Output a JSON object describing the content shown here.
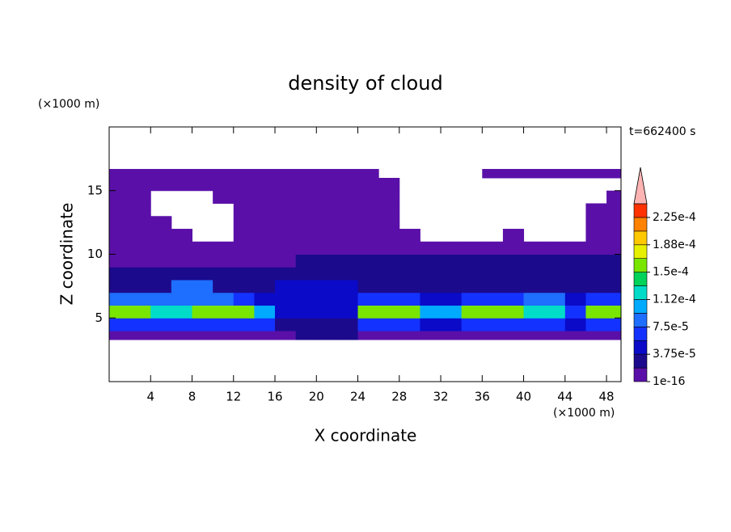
{
  "chart_data": {
    "type": "contour",
    "title": "density of cloud",
    "xlabel": "X coordinate",
    "ylabel": "Z coordinate",
    "xunit": "(×1000 m)",
    "yunit": "(×1000 m)",
    "annotation": "t=662400 s",
    "xlim": [
      0,
      49.4
    ],
    "ylim": [
      0,
      20
    ],
    "xticks": [
      4,
      8,
      12,
      16,
      20,
      24,
      28,
      32,
      36,
      40,
      44,
      48
    ],
    "yticks": [
      5,
      10,
      15
    ],
    "levels": [
      1e-16,
      1.875e-05,
      3.75e-05,
      5.625e-05,
      7.5e-05,
      9.375e-05,
      0.0001125,
      0.00013125,
      0.00015,
      0.00016875,
      0.0001875,
      0.00020625,
      0.000225,
      0.00024375
    ],
    "colors": [
      "#5a10a8",
      "#1c0a8c",
      "#0a0ac8",
      "#1432ff",
      "#1e6eff",
      "#00aaff",
      "#00dcc8",
      "#00d25a",
      "#78e600",
      "#e6f000",
      "#ffc800",
      "#ff8200",
      "#ff3200"
    ],
    "extend_color": "#ffb4b4",
    "cbar_ticks": [
      {
        "value": 1e-16,
        "label": "1e-16"
      },
      {
        "value": 3.75e-05,
        "label": "3.75e-5"
      },
      {
        "value": 7.5e-05,
        "label": "7.5e-5"
      },
      {
        "value": 0.0001125,
        "label": "1.12e-4"
      },
      {
        "value": 0.00015,
        "label": "1.5e-4"
      },
      {
        "value": 0.0001875,
        "label": "1.88e-4"
      },
      {
        "value": 0.000225,
        "label": "2.25e-4"
      }
    ],
    "field": {
      "x": [
        0,
        2,
        4,
        6,
        8,
        10,
        12,
        14,
        16,
        18,
        20,
        22,
        24,
        26,
        28,
        30,
        32,
        34,
        36,
        38,
        40,
        42,
        44,
        46,
        48,
        50
      ],
      "z": [
        3.3,
        4,
        5,
        6,
        7,
        8,
        9,
        10,
        11,
        12,
        13,
        14,
        15,
        16,
        16.7
      ],
      "values": [
        [
          1e-05,
          1e-05,
          1e-05,
          1e-05,
          1e-05,
          1e-05,
          1e-05,
          1e-05,
          1e-05,
          2.5e-05,
          2.5e-05,
          2.5e-05,
          1e-05,
          1e-05,
          1e-05,
          1e-05,
          1e-05,
          1e-05,
          1e-05,
          1e-05,
          1e-05,
          1e-05,
          1e-05,
          1e-05,
          1e-05
        ],
        [
          7e-05,
          7e-05,
          6e-05,
          7e-05,
          7e-05,
          7e-05,
          7e-05,
          7e-05,
          3e-05,
          3e-05,
          3e-05,
          3e-05,
          7e-05,
          7e-05,
          7e-05,
          5e-05,
          5e-05,
          7e-05,
          7e-05,
          7e-05,
          7e-05,
          7e-05,
          4e-05,
          7e-05,
          7e-05
        ],
        [
          0.00016,
          0.00016,
          0.00012,
          0.00012,
          0.00016,
          0.00016,
          0.00016,
          0.0001,
          4e-05,
          4e-05,
          4e-05,
          4e-05,
          0.00016,
          0.00016,
          0.00016,
          0.0001,
          0.0001,
          0.00016,
          0.00016,
          0.00016,
          0.00013,
          0.00013,
          6e-05,
          0.00016,
          0.00016
        ],
        [
          8e-05,
          8e-05,
          9e-05,
          9e-05,
          9e-05,
          9e-05,
          6e-05,
          4e-05,
          4e-05,
          4e-05,
          4e-05,
          4e-05,
          6e-05,
          6e-05,
          6e-05,
          4e-05,
          4e-05,
          6e-05,
          6e-05,
          6e-05,
          8e-05,
          8e-05,
          5e-05,
          6e-05,
          6e-05
        ],
        [
          3e-05,
          3e-05,
          3e-05,
          8e-05,
          8e-05,
          3e-05,
          3e-05,
          3e-05,
          4e-05,
          4e-05,
          4e-05,
          4e-05,
          3e-05,
          3e-05,
          3e-05,
          3e-05,
          3e-05,
          3e-05,
          3e-05,
          3e-05,
          3e-05,
          3e-05,
          3e-05,
          3e-05,
          3e-05
        ],
        [
          2.5e-05,
          2.5e-05,
          2.5e-05,
          2.5e-05,
          2.5e-05,
          2.5e-05,
          2.5e-05,
          2.5e-05,
          2.5e-05,
          3.5e-05,
          3.5e-05,
          3.5e-05,
          2.5e-05,
          2.5e-05,
          2.5e-05,
          2.5e-05,
          2.5e-05,
          2.5e-05,
          2.5e-05,
          2.5e-05,
          2.5e-05,
          2.5e-05,
          2.5e-05,
          2.5e-05,
          2.5e-05
        ],
        [
          1.5e-05,
          1.5e-05,
          1.5e-05,
          1.5e-05,
          1.5e-05,
          1.5e-05,
          1.5e-05,
          1.5e-05,
          1.5e-05,
          2.5e-05,
          2.5e-05,
          2.5e-05,
          2.5e-05,
          2.5e-05,
          2.5e-05,
          2.5e-05,
          2.5e-05,
          2.5e-05,
          2.5e-05,
          2.5e-05,
          2.5e-05,
          2.5e-05,
          2.5e-05,
          2.5e-05,
          2.5e-05
        ],
        [
          1e-05,
          1e-05,
          1e-05,
          1e-05,
          1e-05,
          1e-05,
          1e-05,
          1e-05,
          1e-05,
          1e-05,
          1e-05,
          1e-05,
          1e-05,
          1e-05,
          1e-05,
          1e-05,
          1e-05,
          1e-05,
          1e-05,
          1e-05,
          1e-05,
          1e-05,
          1e-05,
          1e-05,
          1e-05
        ],
        [
          1e-05,
          1e-05,
          1e-05,
          1e-05,
          null,
          null,
          1e-05,
          1e-05,
          1e-05,
          1e-05,
          1e-05,
          1e-05,
          1e-05,
          1e-05,
          1e-05,
          null,
          null,
          null,
          null,
          1e-05,
          null,
          null,
          null,
          1e-05,
          1e-05
        ],
        [
          1e-05,
          1e-05,
          1e-05,
          null,
          null,
          null,
          1e-05,
          1e-05,
          1e-05,
          1e-05,
          1e-05,
          1e-05,
          1e-05,
          1e-05,
          null,
          null,
          null,
          null,
          null,
          null,
          null,
          null,
          null,
          1e-05,
          1e-05
        ],
        [
          1e-05,
          1e-05,
          null,
          null,
          null,
          null,
          1e-05,
          1e-05,
          1e-05,
          1e-05,
          1e-05,
          1e-05,
          1e-05,
          1e-05,
          null,
          null,
          null,
          null,
          null,
          null,
          null,
          null,
          null,
          1e-05,
          1e-05
        ],
        [
          1e-05,
          1e-05,
          null,
          null,
          null,
          1e-05,
          1e-05,
          1e-05,
          1e-05,
          1e-05,
          1e-05,
          1e-05,
          1e-05,
          1e-05,
          null,
          null,
          null,
          null,
          null,
          null,
          null,
          null,
          null,
          null,
          1e-05
        ],
        [
          1e-05,
          1e-05,
          1e-05,
          1e-05,
          1e-05,
          1e-05,
          1e-05,
          1e-05,
          1e-05,
          1e-05,
          1e-05,
          1e-05,
          1e-05,
          1e-05,
          null,
          null,
          null,
          null,
          null,
          null,
          null,
          null,
          null,
          null,
          null
        ],
        [
          1e-05,
          1e-05,
          1e-05,
          1e-05,
          1e-05,
          1e-05,
          1e-05,
          1e-05,
          1e-05,
          1e-05,
          1e-05,
          1e-05,
          1e-05,
          null,
          null,
          null,
          null,
          null,
          1e-05,
          1e-05,
          1e-05,
          1e-05,
          1e-05,
          1e-05,
          1e-05
        ]
      ]
    }
  }
}
